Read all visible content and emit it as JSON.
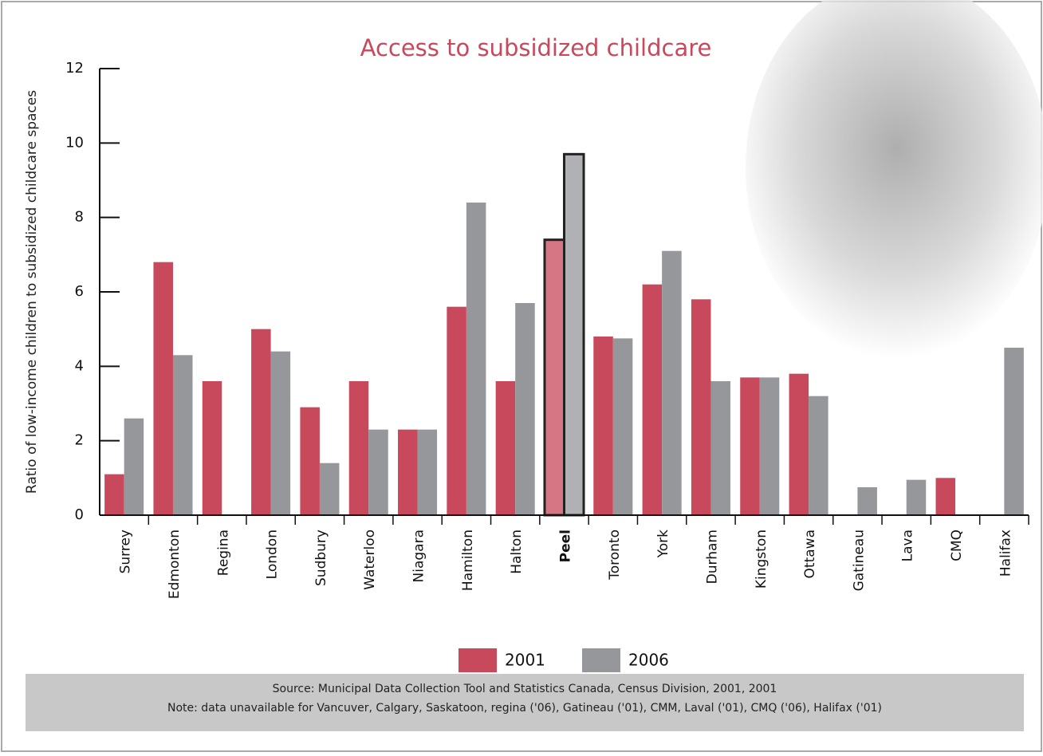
{
  "chart_data": {
    "type": "bar",
    "title": "Access to subsidized childcare",
    "y_label": "Ratio of low-income children to subsidized childcare spaces",
    "categories": [
      "Surrey",
      "Edmonton",
      "Regina",
      "London",
      "Sudbury",
      "Waterloo",
      "Niagara",
      "Hamilton",
      "Halton",
      "Peel",
      "Toronto",
      "York",
      "Durham",
      "Kingston",
      "Ottawa",
      "Gatineau",
      "Lava",
      "CMQ",
      "Halifax"
    ],
    "series": [
      {
        "name": "2001",
        "color": "#c8485c",
        "values": [
          1.1,
          6.8,
          3.6,
          5.0,
          2.9,
          3.6,
          2.3,
          5.6,
          3.6,
          7.4,
          4.8,
          6.2,
          5.8,
          3.7,
          3.8,
          null,
          null,
          1.0,
          null
        ]
      },
      {
        "name": "2006",
        "color": "#96979b",
        "values": [
          2.6,
          4.3,
          null,
          4.4,
          1.4,
          2.3,
          2.3,
          8.4,
          5.7,
          9.7,
          4.75,
          7.1,
          3.6,
          3.7,
          3.2,
          0.75,
          0.95,
          null,
          4.5
        ]
      }
    ],
    "highlight": "Peel",
    "ylim": [
      0,
      12
    ],
    "yticks": [
      0,
      2,
      4,
      6,
      8,
      10,
      12
    ],
    "source": "Source: Municipal Data Collection Tool and Statistics Canada, Census Division, 2001, 2001",
    "note": "Note: data unavailable for Vancuver, Calgary, Saskatoon, regina ('06), Gatineau ('01), CMM, Laval ('01), CMQ ('06), Halifax ('01)"
  }
}
